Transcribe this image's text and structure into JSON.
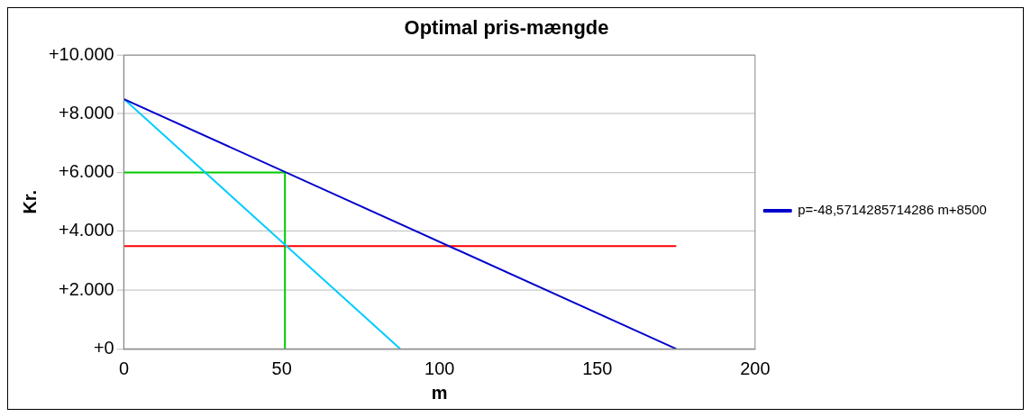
{
  "chart_data": {
    "type": "line",
    "title": "Optimal pris-mængde",
    "xlabel": "m",
    "ylabel": "Kr.",
    "series": [
      {
        "name": "p=-48,5714285714286 m+8500",
        "color": "#0000cc",
        "x": [
          0,
          175
        ],
        "values": [
          8500,
          0
        ]
      },
      {
        "color": "#00ccff",
        "x": [
          0,
          87.5
        ],
        "values": [
          8500,
          0
        ]
      },
      {
        "color": "#ff0000",
        "x": [
          0,
          175
        ],
        "values": [
          3500,
          3500
        ]
      },
      {
        "color": "#00cc00",
        "x": [
          0,
          51,
          51
        ],
        "values": [
          6000,
          6000,
          0
        ]
      }
    ],
    "xlim": [
      0,
      200
    ],
    "xticks": [
      0,
      50,
      100,
      150,
      200
    ],
    "ylim": [
      0,
      10000
    ],
    "yticks": [
      {
        "value": 0,
        "label": "+0"
      },
      {
        "value": 2000,
        "label": "+2.000"
      },
      {
        "value": 4000,
        "label": "+4.000"
      },
      {
        "value": 6000,
        "label": "+6.000"
      },
      {
        "value": 8000,
        "label": "+8.000"
      },
      {
        "value": 10000,
        "label": "+10.000"
      }
    ],
    "grid": "y",
    "legend": "right",
    "marker": "none",
    "line_style": "solid"
  }
}
